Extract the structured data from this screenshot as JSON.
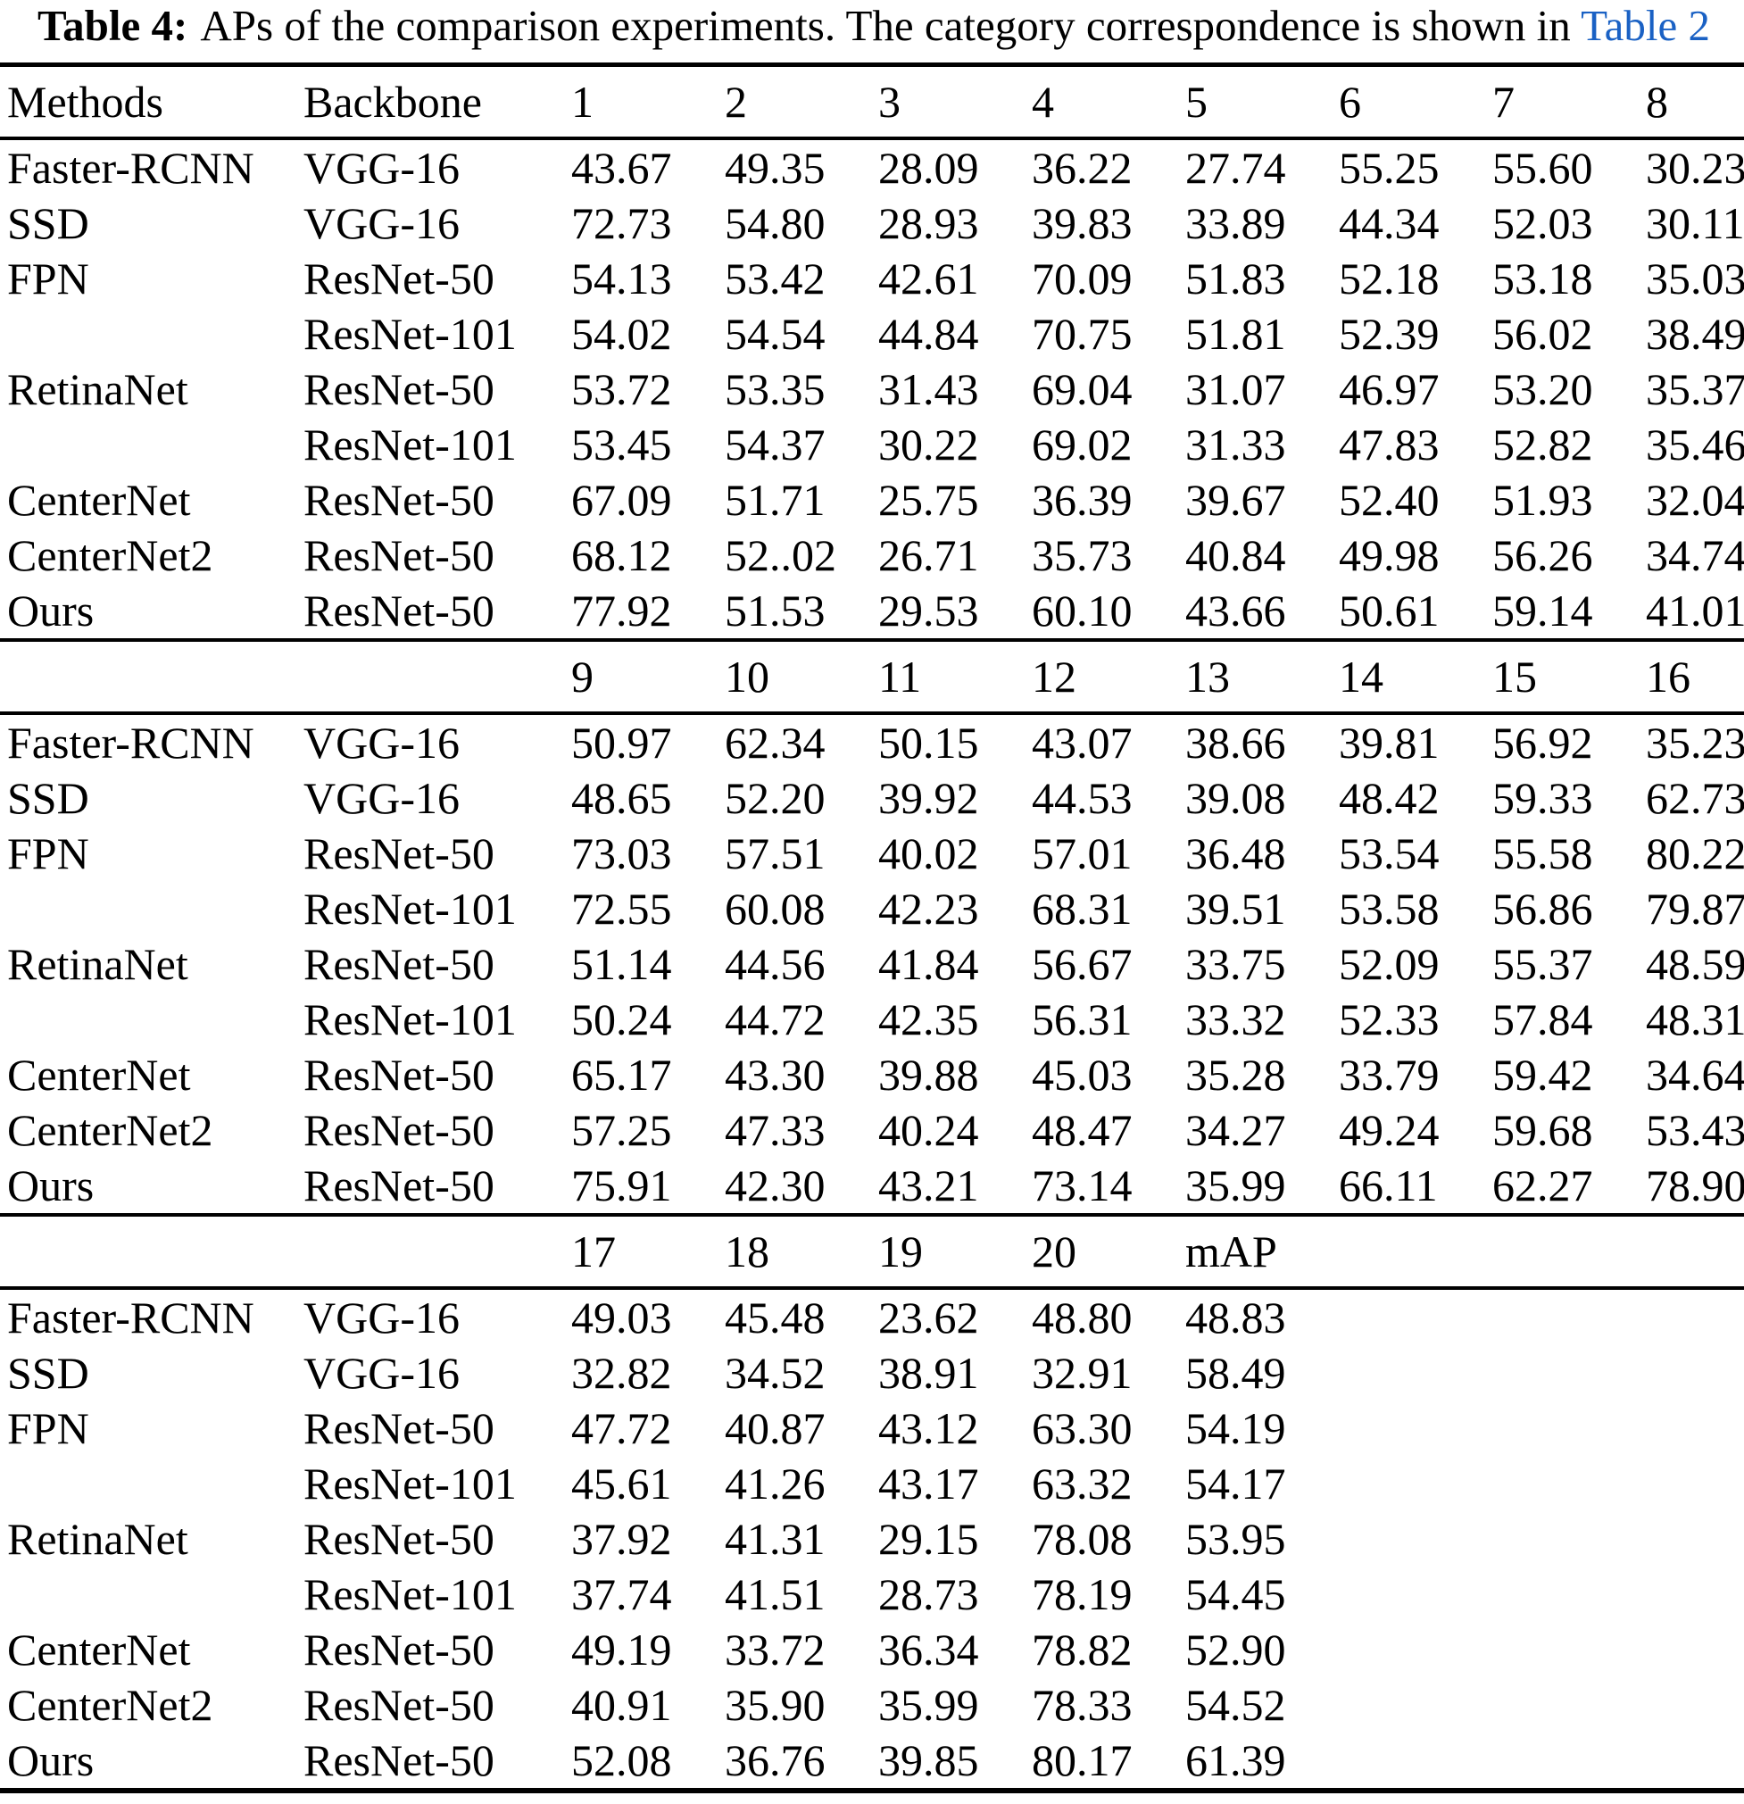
{
  "title": {
    "label": "Table 4:",
    "text": "APs of the comparison experiments. The category correspondence is shown in ",
    "link": "Table 2"
  },
  "colors": {
    "link_blue": "#1a61c4",
    "text": "#000000",
    "rule": "#000000",
    "background": "#ffffff"
  },
  "table": {
    "sections": [
      {
        "header": [
          "Methods",
          "Backbone",
          "1",
          "2",
          "3",
          "4",
          "5",
          "6",
          "7",
          "8"
        ],
        "rows": [
          [
            "Faster-RCNN",
            "VGG-16",
            "43.67",
            "49.35",
            "28.09",
            "36.22",
            "27.74",
            "55.25",
            "55.60",
            "30.23"
          ],
          [
            "SSD",
            "VGG-16",
            "72.73",
            "54.80",
            "28.93",
            "39.83",
            "33.89",
            "44.34",
            "52.03",
            "30.11"
          ],
          [
            "FPN",
            "ResNet-50",
            "54.13",
            "53.42",
            "42.61",
            "70.09",
            "51.83",
            "52.18",
            "53.18",
            "35.03"
          ],
          [
            "",
            "ResNet-101",
            "54.02",
            "54.54",
            "44.84",
            "70.75",
            "51.81",
            "52.39",
            "56.02",
            "38.49"
          ],
          [
            "RetinaNet",
            "ResNet-50",
            "53.72",
            "53.35",
            "31.43",
            "69.04",
            "31.07",
            "46.97",
            "53.20",
            "35.37"
          ],
          [
            "",
            "ResNet-101",
            "53.45",
            "54.37",
            "30.22",
            "69.02",
            "31.33",
            "47.83",
            "52.82",
            "35.46"
          ],
          [
            "CenterNet",
            "ResNet-50",
            "67.09",
            "51.71",
            "25.75",
            "36.39",
            "39.67",
            "52.40",
            "51.93",
            "32.04"
          ],
          [
            "CenterNet2",
            "ResNet-50",
            "68.12",
            "52..02",
            "26.71",
            "35.73",
            "40.84",
            "49.98",
            "56.26",
            "34.74"
          ],
          [
            "Ours",
            "ResNet-50",
            "77.92",
            "51.53",
            "29.53",
            "60.10",
            "43.66",
            "50.61",
            "59.14",
            "41.01"
          ]
        ]
      },
      {
        "header": [
          "",
          "",
          "9",
          "10",
          "11",
          "12",
          "13",
          "14",
          "15",
          "16"
        ],
        "rows": [
          [
            "Faster-RCNN",
            "VGG-16",
            "50.97",
            "62.34",
            "50.15",
            "43.07",
            "38.66",
            "39.81",
            "56.92",
            "35.23"
          ],
          [
            "SSD",
            "VGG-16",
            "48.65",
            "52.20",
            "39.92",
            "44.53",
            "39.08",
            "48.42",
            "59.33",
            "62.73"
          ],
          [
            "FPN",
            "ResNet-50",
            "73.03",
            "57.51",
            "40.02",
            "57.01",
            "36.48",
            "53.54",
            "55.58",
            "80.22"
          ],
          [
            "",
            "ResNet-101",
            "72.55",
            "60.08",
            "42.23",
            "68.31",
            "39.51",
            "53.58",
            "56.86",
            "79.87"
          ],
          [
            "RetinaNet",
            "ResNet-50",
            "51.14",
            "44.56",
            "41.84",
            "56.67",
            "33.75",
            "52.09",
            "55.37",
            "48.59"
          ],
          [
            "",
            "ResNet-101",
            "50.24",
            "44.72",
            "42.35",
            "56.31",
            "33.32",
            "52.33",
            "57.84",
            "48.31"
          ],
          [
            "CenterNet",
            "ResNet-50",
            "65.17",
            "43.30",
            "39.88",
            "45.03",
            "35.28",
            "33.79",
            "59.42",
            "34.64"
          ],
          [
            "CenterNet2",
            "ResNet-50",
            "57.25",
            "47.33",
            "40.24",
            "48.47",
            "34.27",
            "49.24",
            "59.68",
            "53.43"
          ],
          [
            "Ours",
            "ResNet-50",
            "75.91",
            "42.30",
            "43.21",
            "73.14",
            "35.99",
            "66.11",
            "62.27",
            "78.90"
          ]
        ]
      },
      {
        "header": [
          "",
          "",
          "17",
          "18",
          "19",
          "20",
          "mAP",
          "",
          "",
          ""
        ],
        "rows": [
          [
            "Faster-RCNN",
            "VGG-16",
            "49.03",
            "45.48",
            "23.62",
            "48.80",
            "48.83",
            "",
            "",
            ""
          ],
          [
            "SSD",
            "VGG-16",
            "32.82",
            "34.52",
            "38.91",
            "32.91",
            "58.49",
            "",
            "",
            ""
          ],
          [
            "FPN",
            "ResNet-50",
            "47.72",
            "40.87",
            "43.12",
            "63.30",
            "54.19",
            "",
            "",
            ""
          ],
          [
            "",
            "ResNet-101",
            "45.61",
            "41.26",
            "43.17",
            "63.32",
            "54.17",
            "",
            "",
            ""
          ],
          [
            "RetinaNet",
            "ResNet-50",
            "37.92",
            "41.31",
            "29.15",
            "78.08",
            "53.95",
            "",
            "",
            ""
          ],
          [
            "",
            "ResNet-101",
            "37.74",
            "41.51",
            "28.73",
            "78.19",
            "54.45",
            "",
            "",
            ""
          ],
          [
            "CenterNet",
            "ResNet-50",
            "49.19",
            "33.72",
            "36.34",
            "78.82",
            "52.90",
            "",
            "",
            ""
          ],
          [
            "CenterNet2",
            "ResNet-50",
            "40.91",
            "35.90",
            "35.99",
            "78.33",
            "54.52",
            "",
            "",
            ""
          ],
          [
            "Ours",
            "ResNet-50",
            "52.08",
            "36.76",
            "39.85",
            "80.17",
            "61.39",
            "",
            "",
            ""
          ]
        ]
      }
    ]
  }
}
